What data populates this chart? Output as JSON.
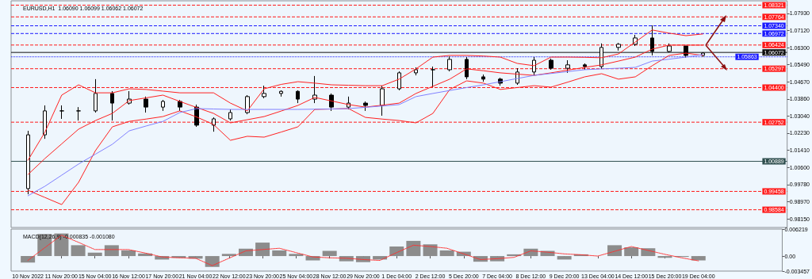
{
  "chart_data": [
    {
      "type": "candlestick",
      "title": "EURUSD,H1  1.06090 1.06099 1.06062 1.06072",
      "tick_labels": "y",
      "grid": false,
      "categories": [
        null,
        null,
        null,
        null,
        null,
        null,
        null,
        null,
        null,
        null,
        null,
        null,
        null,
        null,
        null,
        null,
        null,
        null,
        null,
        null,
        null,
        null,
        null,
        null,
        null,
        null,
        null,
        null,
        null,
        null,
        null,
        null,
        null,
        null,
        null,
        null,
        null,
        null,
        null,
        null,
        null,
        null,
        null,
        null,
        null,
        null,
        null
      ],
      "ylim": [
        0.9774,
        1.0853
      ],
      "yticks": [
        {
          "value": 1.0793,
          "label": "1.07930"
        },
        {
          "value": 1.0712,
          "label": "1.07120"
        },
        {
          "value": 1.063,
          "label": "1.06300"
        },
        {
          "value": 1.0549,
          "label": "1.05490"
        },
        {
          "value": 1.0467,
          "label": "1.04670"
        },
        {
          "value": 1.0386,
          "label": "1.03860"
        },
        {
          "value": 1.0304,
          "label": "1.03040"
        },
        {
          "value": 1.0223,
          "label": "1.02230"
        },
        {
          "value": 1.0141,
          "label": "1.01410"
        },
        {
          "value": 1.006,
          "label": "1.00600"
        },
        {
          "value": 0.9978,
          "label": "0.99780"
        },
        {
          "value": 0.9897,
          "label": "0.98970"
        },
        {
          "value": 0.9815,
          "label": "0.98150"
        }
      ],
      "ohlc": [
        null,
        [
          0.9959,
          1.0234,
          0.9932,
          1.0215
        ],
        [
          1.0215,
          1.0355,
          1.0196,
          1.0329
        ],
        [
          1.0329,
          1.0355,
          1.0291,
          1.0329
        ],
        [
          1.0329,
          1.0347,
          1.0283,
          1.0329
        ],
        [
          1.0329,
          1.048,
          1.0321,
          1.0412
        ],
        [
          1.0412,
          1.0423,
          1.0283,
          1.0366
        ],
        [
          1.0366,
          1.0423,
          1.0359,
          1.0385
        ],
        [
          1.0385,
          1.0397,
          1.0321,
          1.0347
        ],
        [
          1.0347,
          1.0381,
          1.0329,
          1.0374
        ],
        [
          1.0374,
          1.0381,
          1.0329,
          1.0347
        ],
        [
          1.0347,
          1.0359,
          1.0253,
          1.0261
        ],
        [
          1.0261,
          1.0298,
          1.023,
          1.0291
        ],
        [
          1.0291,
          1.0336,
          1.0283,
          1.0321
        ],
        [
          1.0321,
          1.0404,
          1.0313,
          1.0397
        ],
        [
          1.0397,
          1.0449,
          1.0389,
          1.0412
        ],
        [
          1.0412,
          1.0427,
          1.0397,
          1.0422
        ],
        [
          1.0422,
          1.0427,
          1.0366,
          1.0385
        ],
        [
          1.0385,
          1.0495,
          1.0366,
          1.0404
        ],
        [
          1.0404,
          1.0412,
          1.0329,
          1.0347
        ],
        [
          1.0347,
          1.0397,
          1.0336,
          1.0366
        ],
        [
          1.0366,
          1.0374,
          1.0329,
          1.0355
        ],
        [
          1.0355,
          1.0449,
          1.0306,
          1.0434
        ],
        [
          1.0434,
          1.0517,
          1.0427,
          1.051
        ],
        [
          1.051,
          1.0536,
          1.0498,
          1.0525
        ],
        [
          1.0525,
          1.054,
          1.0442,
          1.0525
        ],
        [
          1.0525,
          1.0589,
          1.0517,
          1.0574
        ],
        [
          1.0574,
          1.0585,
          1.048,
          1.0491
        ],
        [
          1.0491,
          1.0502,
          1.0468,
          1.048
        ],
        [
          1.048,
          1.0487,
          1.0449,
          1.0461
        ],
        [
          1.0461,
          1.0532,
          1.0453,
          1.0514
        ],
        [
          1.0514,
          1.0585,
          1.0498,
          1.057
        ],
        [
          1.057,
          1.0578,
          1.0525,
          1.0532
        ],
        [
          1.0532,
          1.057,
          1.051,
          1.0548
        ],
        [
          1.0548,
          1.0555,
          1.0525,
          1.054
        ],
        [
          1.054,
          1.065,
          1.0529,
          1.0631
        ],
        [
          1.0631,
          1.0653,
          1.0616,
          1.0646
        ],
        [
          1.0646,
          1.0691,
          1.0638,
          1.0676
        ],
        [
          1.0676,
          1.0736,
          1.0593,
          1.0612
        ],
        [
          1.0612,
          1.065,
          1.0608,
          1.0638
        ],
        [
          1.0638,
          1.0638,
          1.0582,
          1.0593
        ],
        [
          1.0593,
          1.0608,
          1.0585,
          1.0604
        ],
        null,
        null,
        null,
        null,
        null
      ],
      "series": [
        {
          "type": "line",
          "color": "#ff2020",
          "values": [
            null,
            1.0094,
            1.0227,
            1.0404,
            1.0453,
            1.0415,
            1.0415,
            1.0434,
            1.0431,
            1.0423,
            1.0415,
            1.0415,
            1.0415,
            1.0366,
            1.0329,
            1.0434,
            1.0455,
            1.0468,
            1.0461,
            1.0453,
            1.0451,
            1.0449,
            1.0449,
            1.048,
            1.0529,
            1.0585,
            1.0593,
            1.0593,
            1.059,
            1.0585,
            1.0555,
            1.0544,
            1.0585,
            1.0585,
            1.0584,
            1.0582,
            1.06,
            1.0657,
            1.0714,
            1.0699,
            1.0687,
            1.0695,
            null,
            null,
            null,
            null,
            null
          ]
        },
        {
          "type": "line",
          "color": "#ff2020",
          "values": [
            null,
            1.0026,
            1.0102,
            1.0172,
            1.0242,
            1.0283,
            1.0317,
            1.0378,
            1.0391,
            1.0404,
            1.0374,
            1.0345,
            1.0317,
            1.0272,
            1.0287,
            1.0302,
            1.0328,
            1.0355,
            1.0393,
            1.0376,
            1.0359,
            1.0347,
            1.0356,
            1.0366,
            1.0412,
            1.0446,
            1.048,
            1.0529,
            1.052,
            1.051,
            1.0504,
            1.0498,
            1.051,
            1.0523,
            1.0536,
            1.0548,
            1.0566,
            1.0585,
            1.0623,
            1.0642,
            1.0642,
            1.0642,
            null,
            null,
            null,
            null,
            null
          ]
        },
        {
          "type": "line",
          "color": "#ff2020",
          "values": [
            null,
            0.9951,
            0.9917,
            0.9883,
            0.9989,
            1.014,
            1.0253,
            1.0279,
            1.029,
            1.0302,
            1.0329,
            1.03,
            1.0264,
            1.0189,
            1.0208,
            1.0204,
            1.0228,
            1.0253,
            1.0336,
            1.0338,
            1.034,
            1.0298,
            1.029,
            1.0283,
            1.0272,
            1.0317,
            1.0431,
            1.0472,
            1.0461,
            1.0431,
            1.044,
            1.0449,
            1.0442,
            1.0466,
            1.0491,
            1.0506,
            1.048,
            1.0491,
            1.0544,
            1.0593,
            1.0604,
            1.0593,
            null,
            null,
            null,
            null,
            null
          ]
        },
        {
          "type": "line",
          "color": "#8080ff",
          "values": [
            null,
            0.9925,
            0.997,
            1.0023,
            1.0076,
            1.0123,
            1.017,
            1.0234,
            1.0257,
            1.0279,
            1.0321,
            1.034,
            1.0338,
            1.0336,
            1.0336,
            1.0336,
            1.0336,
            1.0336,
            1.0337,
            1.0338,
            1.034,
            1.0346,
            1.0352,
            1.0359,
            1.0397,
            1.0412,
            1.0426,
            1.044,
            1.0453,
            1.0468,
            1.0483,
            1.0498,
            1.0507,
            1.0516,
            1.0525,
            1.0529,
            1.0532,
            1.0536,
            1.0566,
            1.0575,
            1.0585,
            1.0597,
            null,
            null,
            null,
            null,
            null
          ]
        }
      ],
      "ref_lines": [
        {
          "axis": "y",
          "value": 1.08321,
          "label": "1.08321",
          "color": "#ff1a1a",
          "line_style": "dashed"
        },
        {
          "axis": "y",
          "value": 1.07764,
          "label": "1.07764",
          "color": "#ff1a1a",
          "line_style": "dashed"
        },
        {
          "axis": "y",
          "value": 1.0734,
          "label": "1.07340",
          "color": "#1a1aff",
          "line_style": "dashed"
        },
        {
          "axis": "y",
          "value": 1.06972,
          "label": "1.06972",
          "color": "#1a1aff",
          "line_style": "dashed"
        },
        {
          "axis": "y",
          "value": 1.06424,
          "label": "1.06424",
          "color": "#ff1a1a",
          "line_style": "dashed"
        },
        {
          "axis": "y",
          "value": 1.06072,
          "label": "1.06072",
          "color": "#101010",
          "line_style": "solid"
        },
        {
          "axis": "y",
          "value": 1.05863,
          "label": "1.05863",
          "color": "#1a1aff",
          "line_style": "dotted"
        },
        {
          "axis": "y",
          "value": 1.05297,
          "label": "1.05297",
          "color": "#ff1a1a",
          "line_style": "dashed"
        },
        {
          "axis": "y",
          "value": 1.044,
          "label": "1.04400",
          "color": "#ff1a1a",
          "line_style": "dashed"
        },
        {
          "axis": "y",
          "value": 1.02752,
          "label": "1.02752",
          "color": "#ff1a1a",
          "line_style": "dashed"
        },
        {
          "axis": "y",
          "value": 1.00889,
          "label": "1.00889",
          "color": "#2f4f4f",
          "line_style": "solid"
        },
        {
          "axis": "y",
          "value": 0.99458,
          "label": "0.99458",
          "color": "#ff1a1a",
          "line_style": "dashed"
        },
        {
          "axis": "y",
          "value": 0.98584,
          "label": "0.98584",
          "color": "#ff1a1a",
          "line_style": "dashed"
        }
      ]
    },
    {
      "type": "bar",
      "title": "MACD(12,26,9) -0.000835 -0.001080",
      "grid": false,
      "categories": [
        null,
        "10 Nov 2022",
        null,
        "11 Nov 20:00",
        null,
        "15 Nov 04:00",
        null,
        "16 Nov 12:00",
        null,
        "17 Nov 20:00",
        null,
        "21 Nov 04:00",
        null,
        "22 Nov 12:00",
        null,
        "23 Nov 20:00",
        null,
        "25 Nov 04:00",
        null,
        "28 Nov 12:00",
        null,
        "29 Nov 20:00",
        null,
        "1 Dec 04:00",
        null,
        "2 Dec 12:00",
        null,
        "5 Dec 20:00",
        null,
        "7 Dec 04:00",
        null,
        "8 Dec 12:00",
        null,
        "9 Dec 20:00",
        null,
        "13 Dec 04:00",
        null,
        "14 Dec 12:00",
        null,
        "15 Dec 20:00",
        null,
        "19 Dec 04:00",
        null,
        null,
        null,
        null,
        null
      ],
      "ylim": [
        -0.003457,
        0.006219
      ],
      "yticks": [
        {
          "value": 0.006219,
          "label": "0.006219"
        },
        {
          "value": 0,
          "label": "0.00"
        },
        {
          "value": -0.003457,
          "label": "-0.003457"
        }
      ],
      "series": [
        {
          "type": "bar",
          "color": "#8c8c8c",
          "values": [
            null,
            -0.0015,
            0.0051,
            0.0052,
            0.0025,
            0.0008,
            0.0025,
            0.0013,
            0.0006,
            -0.0008,
            -0.0004,
            -0.0006,
            -0.0025,
            0.0005,
            0.0017,
            0.0031,
            0.0013,
            0.0005,
            -0.001,
            0.0012,
            -0.0012,
            -0.0014,
            -0.0008,
            0.0022,
            0.0035,
            0.0027,
            0.0013,
            0.001,
            -0.0013,
            -0.0012,
            0.0004,
            0.0017,
            0.0012,
            -0.0008,
            0.0004,
            0,
            0.0025,
            0.002,
            0.0018,
            -0.0004,
            -0.0002,
            -0.001,
            null,
            null,
            null,
            null,
            null
          ]
        },
        {
          "type": "line",
          "color": "#ff3030",
          "line_style": "dotted",
          "values": [
            null,
            -0.001,
            0.0019,
            0.0048,
            0.0032,
            0.0015,
            0.0015,
            0.0015,
            0.0007,
            -0.0002,
            -0.0004,
            -0.0005,
            -0.0022,
            -0.0005,
            0.0012,
            0.0015,
            0.0018,
            0.0008,
            -0.0002,
            -0.0004,
            -0.0005,
            -0.0008,
            -0.001,
            0.0008,
            0.0025,
            0.0022,
            0.0018,
            0.0005,
            -0.0008,
            -0.0006,
            -0.0003,
            0.0012,
            0.0009,
            0.0005,
            0.0003,
            0,
            0.0011,
            0.0022,
            0.0013,
            0.0004,
            -0.0004,
            -0.0011,
            null,
            null,
            null,
            null,
            null
          ]
        }
      ]
    }
  ]
}
